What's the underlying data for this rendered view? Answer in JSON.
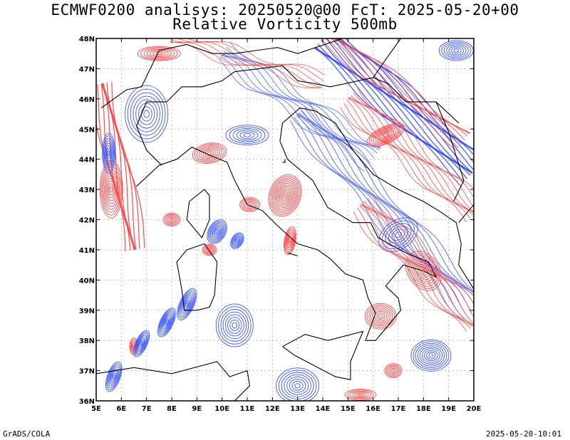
{
  "titles": {
    "line1": "ECMWF0200 analisys: 20250520@00 FcT: 2025-05-20+00",
    "line2": "Relative Vorticity 500mb"
  },
  "map": {
    "lon_range": [
      5,
      20
    ],
    "lat_range": [
      36,
      48
    ],
    "lon_ticks": [
      "5E",
      "6E",
      "7E",
      "8E",
      "9E",
      "10E",
      "11E",
      "12E",
      "13E",
      "14E",
      "15E",
      "16E",
      "17E",
      "18E",
      "19E",
      "20E"
    ],
    "lat_ticks": [
      "36N",
      "37N",
      "38N",
      "39N",
      "40N",
      "41N",
      "42N",
      "43N",
      "44N",
      "45N",
      "46N",
      "47N",
      "48N"
    ],
    "positive_color": "#ff4a4a",
    "negative_color": "#3a55ff",
    "grid": "dotted"
  },
  "footer": {
    "left": "GrADS/COLA",
    "right": "2025-05-20-10:01"
  }
}
